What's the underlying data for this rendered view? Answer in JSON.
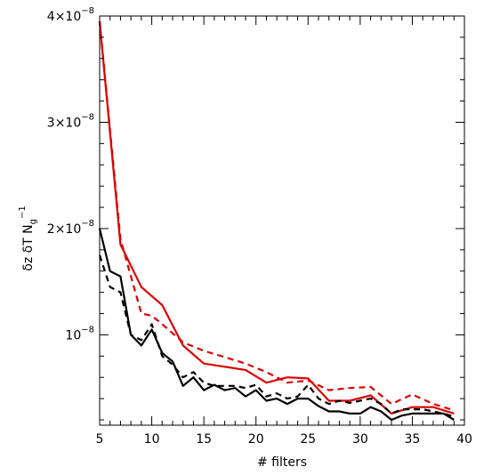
{
  "chart_data": {
    "type": "line",
    "title": "",
    "xlabel": "# filters",
    "ylabel": "δz  δT  N_g^{-1}",
    "ylabel_parts": {
      "main": "δz  δT  N",
      "sub": "g",
      "sup": "−1"
    },
    "xlim": [
      5,
      40
    ],
    "ylim": [
      1.5e-09,
      4e-08
    ],
    "x_ticks": [
      5,
      10,
      15,
      20,
      25,
      30,
      35,
      40
    ],
    "x_tick_labels": [
      "5",
      "10",
      "15",
      "20",
      "25",
      "30",
      "35",
      "40"
    ],
    "y_ticks": [
      1e-08,
      2e-08,
      3e-08,
      4e-08
    ],
    "y_tick_labels": [
      {
        "value": 1e-08,
        "mantissa": "",
        "base": "10",
        "exp": "−8"
      },
      {
        "value": 2e-08,
        "mantissa": "2×",
        "base": "10",
        "exp": "−8"
      },
      {
        "value": 3e-08,
        "mantissa": "3×",
        "base": "10",
        "exp": "−8"
      },
      {
        "value": 4e-08,
        "mantissa": "4×",
        "base": "10",
        "exp": "−8"
      }
    ],
    "grid": false,
    "legend": "none",
    "series": [
      {
        "color": "#dd0000",
        "style": "solid",
        "x": [
          5,
          7,
          9,
          11,
          13,
          15,
          17,
          19,
          21,
          23,
          25,
          27,
          29,
          31,
          33,
          35,
          37,
          39
        ],
        "y": [
          3.95e-08,
          1.85e-08,
          1.45e-08,
          1.28e-08,
          9e-09,
          7.3e-09,
          7e-09,
          6.7e-09,
          5.5e-09,
          6e-09,
          5.9e-09,
          3.8e-09,
          3.8e-09,
          4.3e-09,
          2.6e-09,
          3.2e-09,
          3.2e-09,
          2.6e-09
        ]
      },
      {
        "color": "#dd0000",
        "style": "dashed",
        "x": [
          5,
          7,
          9,
          10,
          11,
          13,
          15,
          17,
          19,
          21,
          23,
          25,
          27,
          29,
          31,
          33,
          35,
          37,
          39
        ],
        "y": [
          3.95e-08,
          1.9e-08,
          1.2e-08,
          1.18e-08,
          1.1e-08,
          9.3e-09,
          8.5e-09,
          7.9e-09,
          7.3e-09,
          6.5e-09,
          5.5e-09,
          5.7e-09,
          4.8e-09,
          5e-09,
          5.1e-09,
          3.5e-09,
          4.4e-09,
          3.5e-09,
          2.9e-09
        ]
      },
      {
        "color": "#000000",
        "style": "solid",
        "x": [
          5,
          6,
          7,
          8,
          9,
          10,
          11,
          12,
          13,
          14,
          15,
          16,
          17,
          18,
          19,
          20,
          21,
          22,
          23,
          24,
          25,
          26,
          27,
          28,
          29,
          30,
          31,
          32,
          33,
          34,
          35,
          36,
          37,
          38,
          39
        ],
        "y": [
          2e-08,
          1.6e-08,
          1.55e-08,
          1e-08,
          9e-09,
          1.05e-08,
          8.3e-09,
          7.5e-09,
          5.2e-09,
          6e-09,
          4.8e-09,
          5.3e-09,
          4.8e-09,
          5e-09,
          4.2e-09,
          4.8e-09,
          3.8e-09,
          4e-09,
          3.5e-09,
          4e-09,
          4e-09,
          3.3e-09,
          2.8e-09,
          2.8e-09,
          2.6e-09,
          2.6e-09,
          3.2e-09,
          2.8e-09,
          2e-09,
          2.4e-09,
          2.6e-09,
          2.6e-09,
          2.6e-09,
          2.6e-09,
          2e-09
        ]
      },
      {
        "color": "#000000",
        "style": "dashed",
        "x": [
          5,
          6,
          7,
          8,
          9,
          10,
          11,
          12,
          13,
          14,
          15,
          16,
          17,
          18,
          19,
          20,
          21,
          22,
          23,
          24,
          25,
          26,
          27,
          28,
          29,
          30,
          31,
          32,
          33,
          34,
          35,
          36,
          37,
          38,
          39
        ],
        "y": [
          1.75e-08,
          1.45e-08,
          1.4e-08,
          1e-08,
          9.5e-09,
          1.1e-08,
          8e-09,
          7.2e-09,
          6e-09,
          6.5e-09,
          5.5e-09,
          5.2e-09,
          5.2e-09,
          5.2e-09,
          5e-09,
          5.3e-09,
          4.2e-09,
          4.5e-09,
          4e-09,
          4.2e-09,
          5.3e-09,
          4e-09,
          3.5e-09,
          3.8e-09,
          3.6e-09,
          3.8e-09,
          4e-09,
          3.5e-09,
          2.6e-09,
          3e-09,
          3e-09,
          3e-09,
          2.8e-09,
          2.6e-09,
          2.3e-09
        ]
      }
    ]
  }
}
